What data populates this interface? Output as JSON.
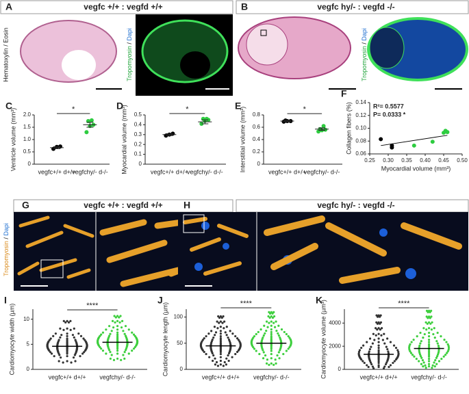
{
  "figure": {
    "panels": [
      {
        "label": "A",
        "title": "vegfc +/+ : vegfd +/+"
      },
      {
        "label": "B",
        "title": "vegfc hy/- : vegfd -/-"
      },
      {
        "label": "G",
        "title": "vegfc +/+ : vegfd +/+"
      },
      {
        "label": "H",
        "title": "vegfc hy/- : vegfd -/-"
      }
    ],
    "stain_he": "Hematoxylin / Eosin",
    "stain_trop": [
      "Tropomyosin",
      " / ",
      "Dapi"
    ]
  },
  "chart_data": [
    {
      "type": "dotplot",
      "panel": "C",
      "ylabel": "Ventricle volume (mm³)",
      "categories": [
        "vegfc+/+ d+/+",
        "vegfchy/- d-/-"
      ],
      "points": [
        [
          0.62,
          0.7,
          0.72
        ],
        [
          1.3,
          1.55,
          1.6,
          1.75,
          1.78
        ]
      ],
      "means": [
        0.67,
        1.6
      ],
      "sem": [
        0.04,
        0.1
      ],
      "colors": [
        "#000000",
        "#2ecc40"
      ],
      "ylim": [
        0,
        2
      ],
      "yticks": [
        0,
        0.5,
        {
          "value": 1,
          "label": "1.0"
        },
        1.5,
        {
          "value": 2,
          "label": "2.0"
        }
      ],
      "significance": "*"
    },
    {
      "type": "dotplot",
      "panel": "D",
      "ylabel": "Myocardial volume (mm³)",
      "categories": [
        "vegfc+/+ d+/+",
        "vegfchy/- d-/-"
      ],
      "points": [
        [
          0.29,
          0.3,
          0.31
        ],
        [
          0.41,
          0.44,
          0.45,
          0.46,
          0.46
        ]
      ],
      "means": [
        0.3,
        0.43
      ],
      "sem": [
        0.01,
        0.02
      ],
      "colors": [
        "#000000",
        "#2ecc40"
      ],
      "ylim": [
        0,
        0.5
      ],
      "yticks": [
        0,
        0.1,
        0.2,
        0.3,
        0.4,
        0.5
      ],
      "significance": "*"
    },
    {
      "type": "dotplot",
      "panel": "E",
      "ylabel": "Interstitial volume (mm³)",
      "categories": [
        "vegfc+/+ d+/+",
        "vegfchy/- d-/-"
      ],
      "points": [
        [
          0.69,
          0.7,
          0.7,
          0.71
        ],
        [
          0.53,
          0.55,
          0.56,
          0.57,
          0.62
        ]
      ],
      "means": [
        0.7,
        0.57
      ],
      "sem": [
        0.01,
        0.02
      ],
      "colors": [
        "#000000",
        "#2ecc40"
      ],
      "ylim": [
        0,
        0.8
      ],
      "yticks": [
        0,
        0.2,
        0.4,
        0.6,
        0.8
      ],
      "significance": "*"
    },
    {
      "type": "scatter",
      "panel": "F",
      "xlabel": "Myocardial volume (mm³)",
      "ylabel": "Collagen fibers (%)",
      "series": [
        {
          "color": "#000000",
          "x": [
            0.28,
            0.31,
            0.31
          ],
          "y": [
            0.083,
            0.07,
            0.073
          ]
        },
        {
          "color": "#2ecc40",
          "x": [
            0.37,
            0.42,
            0.45,
            0.455,
            0.46
          ],
          "y": [
            0.073,
            0.079,
            0.093,
            0.096,
            0.094
          ]
        }
      ],
      "fit": {
        "x": [
          0.28,
          0.46
        ],
        "y": [
          0.073,
          0.089
        ]
      },
      "annotations": [
        "R²= 0.5577",
        "P= 0.0333 *"
      ],
      "xlim": [
        0.25,
        0.5
      ],
      "xticks": [
        0.25,
        {
          "value": 0.3,
          "label": "0.30"
        },
        0.35,
        {
          "value": 0.4,
          "label": "0.40"
        },
        0.45,
        {
          "value": 0.5,
          "label": "0.50"
        }
      ],
      "ylim": [
        0.06,
        0.14
      ],
      "yticks": [
        0.06,
        0.08,
        {
          "value": 0.1,
          "label": "0.10"
        },
        0.12,
        0.14
      ]
    },
    {
      "type": "swarm",
      "panel": "I",
      "ylabel": "Cardiomyocyte width (µm)",
      "categories": [
        "vegfc+/+ d+/+",
        "vegfchy/- d-/-"
      ],
      "points": [
        [
          1.5,
          2.5,
          3,
          3.3,
          3.6,
          3.8,
          4,
          4.1,
          4.2,
          4.3,
          4.4,
          4.5,
          4.6,
          4.7,
          4.8,
          5,
          5.2,
          5.4,
          5.7,
          6,
          6.5,
          7,
          8,
          9.5
        ],
        [
          2,
          3,
          3.6,
          4,
          4.3,
          4.6,
          4.8,
          5,
          5.1,
          5.2,
          5.3,
          5.4,
          5.5,
          5.6,
          5.8,
          6,
          6.2,
          6.5,
          6.8,
          7.2,
          7.8,
          8.5,
          9.5,
          10.5
        ]
      ],
      "means": [
        4.6,
        5.4
      ],
      "colors": [
        "#333333",
        "#3ecf3e"
      ],
      "ylim": [
        0,
        12
      ],
      "yticks": [
        0,
        5,
        10
      ],
      "significance": "****"
    },
    {
      "type": "swarm",
      "panel": "J",
      "ylabel": "Cardiomyocyte length (µm)",
      "categories": [
        "vegfc+/+ d+/+",
        "vegfchy/- d-/-"
      ],
      "points": [
        [
          8,
          15,
          22,
          28,
          32,
          35,
          37,
          39,
          41,
          43,
          45,
          47,
          49,
          52,
          55,
          58,
          62,
          67,
          72,
          80,
          90,
          100
        ],
        [
          10,
          20,
          28,
          34,
          38,
          41,
          44,
          46,
          48,
          50,
          52,
          54,
          56,
          59,
          62,
          66,
          70,
          75,
          82,
          90,
          100,
          108
        ]
      ],
      "means": [
        45,
        50
      ],
      "colors": [
        "#333333",
        "#3ecf3e"
      ],
      "ylim": [
        0,
        115
      ],
      "yticks": [
        0,
        50,
        100
      ],
      "significance": "****"
    },
    {
      "type": "swarm",
      "panel": "K",
      "ylabel": "Cardiomyocyte volume (µm³)",
      "categories": [
        "vegfc+/+ d+/+",
        "vegfchy/- d-/-"
      ],
      "points": [
        [
          150,
          300,
          500,
          650,
          800,
          900,
          1000,
          1100,
          1200,
          1300,
          1450,
          1600,
          1800,
          2000,
          2300,
          2600,
          3000,
          3500,
          4000,
          4600
        ],
        [
          200,
          400,
          650,
          850,
          1050,
          1200,
          1350,
          1500,
          1650,
          1800,
          1950,
          2100,
          2300,
          2500,
          2800,
          3100,
          3500,
          4000,
          4500,
          5000
        ]
      ],
      "means": [
        1300,
        1800
      ],
      "colors": [
        "#333333",
        "#3ecf3e"
      ],
      "ylim": [
        0,
        5200
      ],
      "yticks": [
        0,
        2000,
        4000
      ],
      "significance": "****"
    }
  ]
}
